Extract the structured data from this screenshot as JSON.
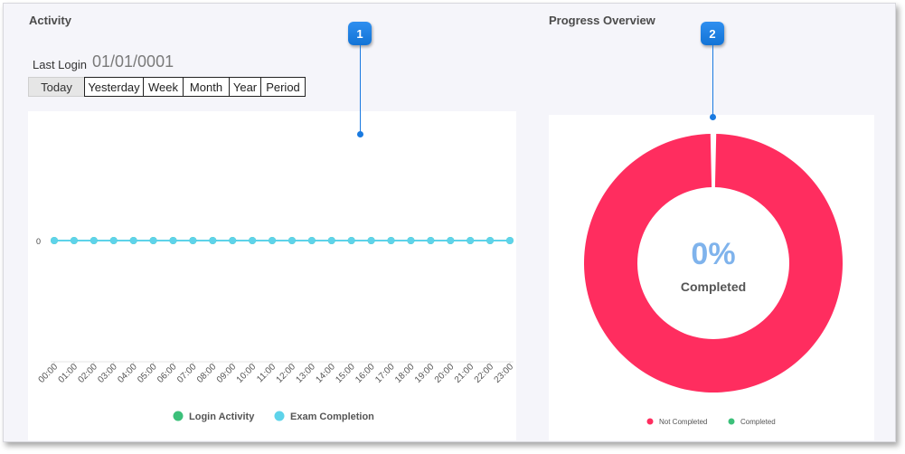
{
  "activity": {
    "title": "Activity",
    "last_login_label": "Last Login",
    "last_login_value": "01/01/0001",
    "period_buttons": [
      {
        "label": "Today",
        "active": true
      },
      {
        "label": "Yesterday",
        "active": false
      },
      {
        "label": "Week",
        "active": false
      },
      {
        "label": "Month",
        "active": false
      },
      {
        "label": "Year",
        "active": false
      },
      {
        "label": "Period",
        "active": false
      }
    ]
  },
  "progress": {
    "title": "Progress Overview",
    "percent_text": "0%",
    "completed_label": "Completed"
  },
  "callouts": [
    "1",
    "2"
  ],
  "colors": {
    "login_activity": "#3cc07a",
    "exam_completion": "#5ed3ea",
    "not_completed": "#ff2d5f",
    "completed": "#3cc07a",
    "callout": "#1a7ae0",
    "percent_text": "#7fb3ec"
  },
  "chart_data": [
    {
      "type": "line",
      "categories": [
        "00:00",
        "01:00",
        "02:00",
        "03:00",
        "04:00",
        "05:00",
        "06:00",
        "07:00",
        "08:00",
        "09:00",
        "10:00",
        "11:00",
        "12:00",
        "13:00",
        "14:00",
        "15:00",
        "16:00",
        "17:00",
        "18:00",
        "19:00",
        "20:00",
        "21:00",
        "22:00",
        "23:00"
      ],
      "yticks": [
        "0"
      ],
      "series": [
        {
          "name": "Login Activity",
          "values": [
            0,
            0,
            0,
            0,
            0,
            0,
            0,
            0,
            0,
            0,
            0,
            0,
            0,
            0,
            0,
            0,
            0,
            0,
            0,
            0,
            0,
            0,
            0,
            0
          ]
        },
        {
          "name": "Exam Completion",
          "values": [
            0,
            0,
            0,
            0,
            0,
            0,
            0,
            0,
            0,
            0,
            0,
            0,
            0,
            0,
            0,
            0,
            0,
            0,
            0,
            0,
            0,
            0,
            0,
            0
          ]
        }
      ],
      "legend": "bottom"
    },
    {
      "type": "pie",
      "categories": [
        "Not Completed",
        "Completed"
      ],
      "values": [
        100,
        0
      ],
      "legend": "bottom"
    }
  ]
}
